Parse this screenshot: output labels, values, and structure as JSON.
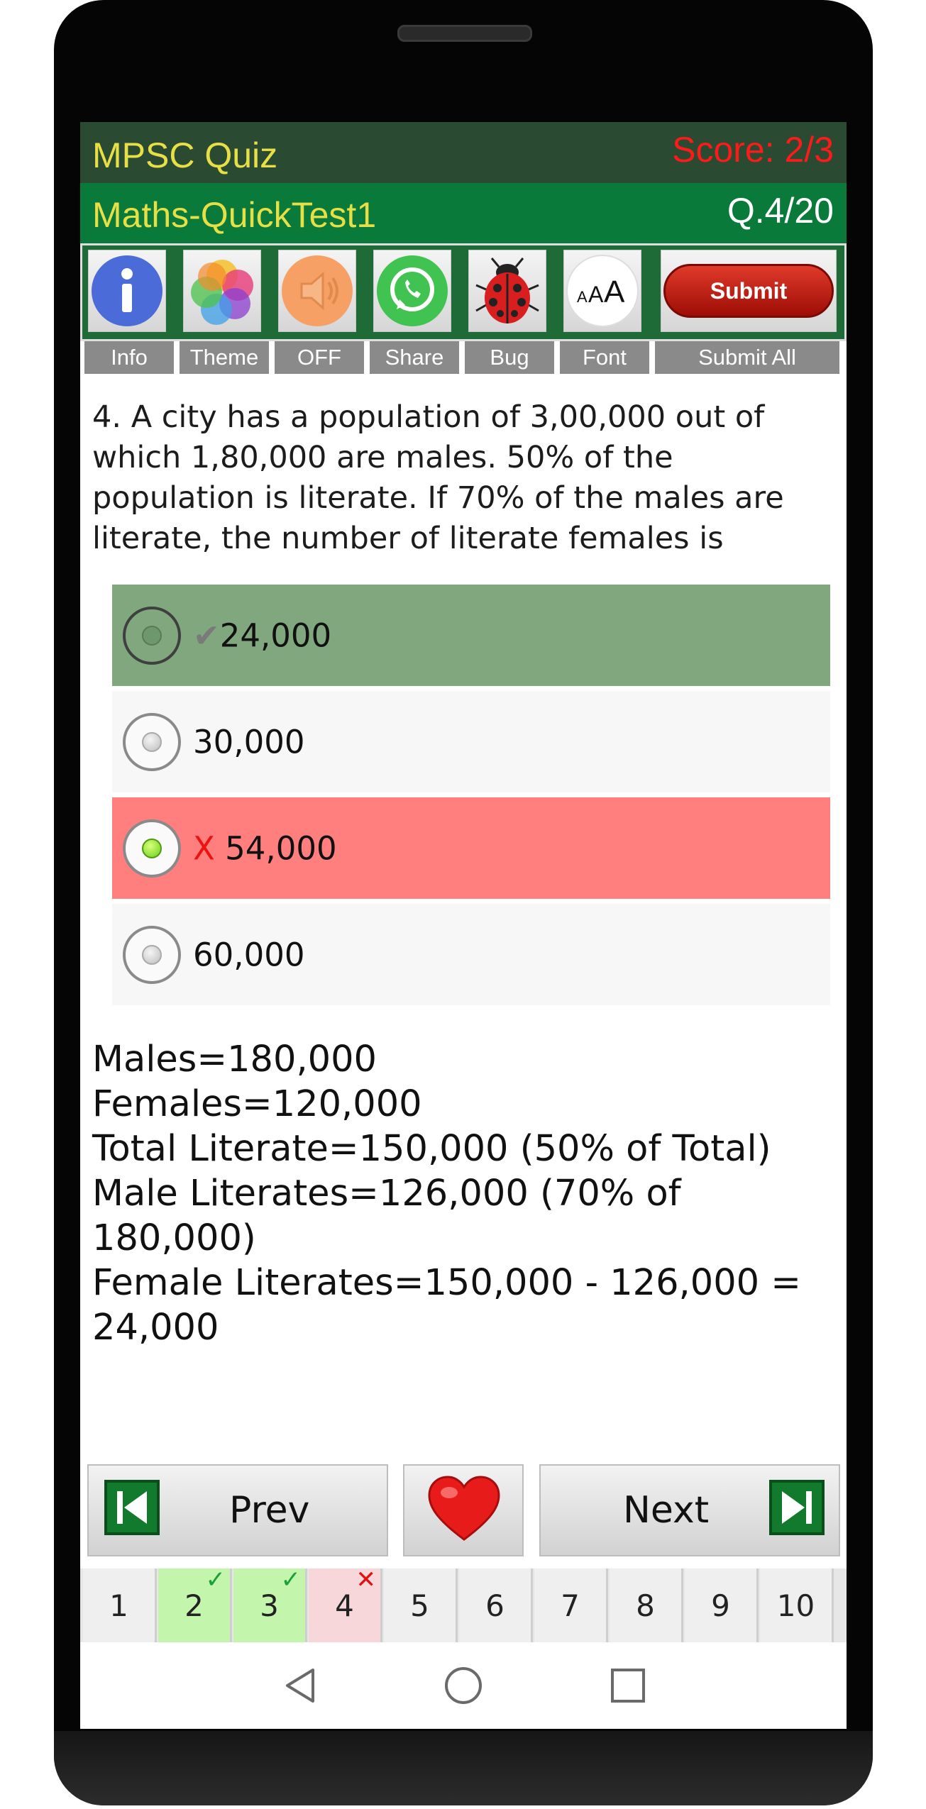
{
  "header": {
    "app_title": "MPSC Quiz",
    "score": "Score: 2/3",
    "test_name": "Maths-QuickTest1",
    "question_counter": "Q.4/20"
  },
  "toolbar": {
    "submit_button_label": "Submit",
    "font_icon_text": "AAA",
    "labels": {
      "info": "Info",
      "theme": "Theme",
      "sound": "OFF",
      "share": "Share",
      "bug": "Bug",
      "font": "Font",
      "submit_all": "Submit All"
    }
  },
  "question": {
    "text": "4. A city has a population of 3,00,000 out of which 1,80,000 are males. 50% of the population is literate. If 70% of the males are literate, the number of literate females is",
    "options": [
      {
        "mark": "✔",
        "text": "24,000",
        "state": "correct-answer",
        "background": "#80a77e"
      },
      {
        "mark": "",
        "text": "30,000",
        "state": "neutral",
        "background": "#f7f7f7"
      },
      {
        "mark": "X",
        "text": "54,000",
        "state": "selected-wrong",
        "background": "#ff7f7f"
      },
      {
        "mark": "",
        "text": "60,000",
        "state": "neutral",
        "background": "#f7f7f7"
      }
    ]
  },
  "explanation": [
    "Males=180,000",
    "Females=120,000",
    "Total Literate=150,000 (50% of Total)",
    "Male Literates=126,000 (70% of 180,000)",
    "Female Literates=150,000 - 126,000 =",
    "24,000"
  ],
  "navigation": {
    "prev_label": "Prev",
    "next_label": "Next"
  },
  "pager": [
    {
      "number": "1",
      "status": "none"
    },
    {
      "number": "2",
      "status": "correct"
    },
    {
      "number": "3",
      "status": "correct"
    },
    {
      "number": "4",
      "status": "wrong"
    },
    {
      "number": "5",
      "status": "none"
    },
    {
      "number": "6",
      "status": "none"
    },
    {
      "number": "7",
      "status": "none"
    },
    {
      "number": "8",
      "status": "none"
    },
    {
      "number": "9",
      "status": "none"
    },
    {
      "number": "10",
      "status": "none"
    }
  ],
  "colors": {
    "title_bar": "#2a4a31",
    "sub_bar": "#0a7a3a",
    "title_text": "#e6df45",
    "score_text": "#ff1a1a",
    "correct_green": "#80a77e",
    "wrong_red": "#ff7f7f"
  }
}
